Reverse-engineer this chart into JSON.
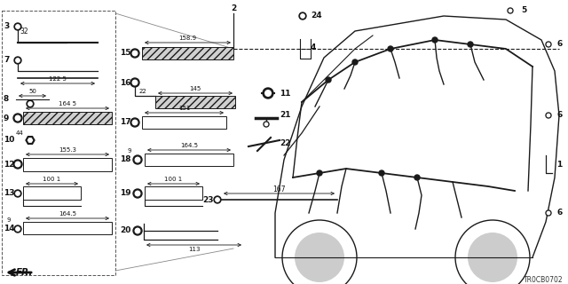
{
  "title": "TR0CB0702",
  "bg_color": "#f0f0f0",
  "figsize": [
    6.4,
    3.2
  ],
  "dpi": 100
}
